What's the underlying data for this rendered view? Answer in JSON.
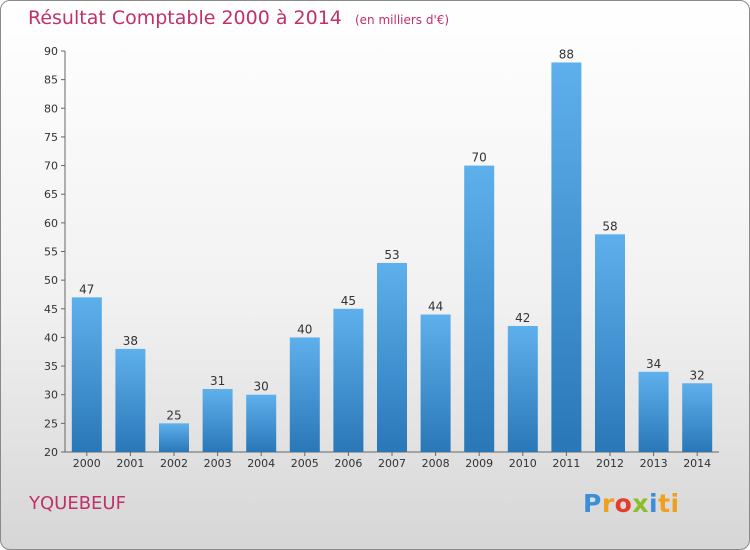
{
  "header": {
    "title": "Résultat Comptable 2000 à 2014",
    "unit": "(en milliers d'€)"
  },
  "footer": {
    "commune": "YQUEBEUF",
    "logo_letters": [
      "P",
      "r",
      "o",
      "x",
      "i",
      "ti"
    ]
  },
  "colors": {
    "bar_top": "#5eb0ec",
    "bar_bottom": "#2a77b8",
    "title": "#c0306a"
  },
  "chart_data": {
    "type": "bar",
    "title": "Résultat Comptable 2000 à 2014",
    "subtitle": "(en milliers d'€)",
    "xlabel": "",
    "ylabel": "",
    "categories": [
      "2000",
      "2001",
      "2002",
      "2003",
      "2004",
      "2005",
      "2006",
      "2007",
      "2008",
      "2009",
      "2010",
      "2011",
      "2012",
      "2013",
      "2014"
    ],
    "values": [
      47,
      38,
      25,
      31,
      30,
      40,
      45,
      53,
      44,
      70,
      42,
      88,
      58,
      34,
      32
    ],
    "ylim": [
      20,
      90
    ],
    "yticks": [
      20,
      25,
      30,
      35,
      40,
      45,
      50,
      55,
      60,
      65,
      70,
      75,
      80,
      85,
      90
    ],
    "grid": false
  }
}
